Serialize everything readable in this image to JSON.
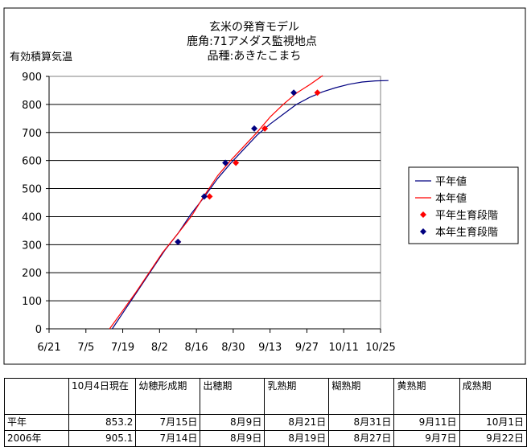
{
  "chart_data": {
    "type": "line",
    "title": [
      "玄米の発育モデル",
      "鹿角:71アメダス監視地点",
      "品種:あきたこまち"
    ],
    "ylabel": "有効積算気温",
    "xlabel": "",
    "x_ticks": [
      "6/21",
      "7/5",
      "7/19",
      "8/2",
      "8/16",
      "8/30",
      "9/13",
      "9/27",
      "10/11",
      "10/25"
    ],
    "y_ticks": [
      "0",
      "100",
      "200",
      "300",
      "400",
      "500",
      "600",
      "700",
      "800",
      "900"
    ],
    "ylim": [
      0,
      900
    ],
    "grid": true,
    "legend_position": "right",
    "series": [
      {
        "name": "平年値",
        "kind": "line",
        "color": "#000080",
        "points": [
          [
            "7/15",
            0
          ],
          [
            "7/20",
            70
          ],
          [
            "7/25",
            140
          ],
          [
            "7/30",
            210
          ],
          [
            "8/4",
            280
          ],
          [
            "8/9",
            340
          ],
          [
            "8/14",
            410
          ],
          [
            "8/19",
            470
          ],
          [
            "8/24",
            535
          ],
          [
            "8/29",
            590
          ],
          [
            "9/3",
            640
          ],
          [
            "9/8",
            690
          ],
          [
            "9/13",
            730
          ],
          [
            "9/18",
            765
          ],
          [
            "9/23",
            800
          ],
          [
            "9/28",
            825
          ],
          [
            "10/3",
            845
          ],
          [
            "10/8",
            860
          ],
          [
            "10/13",
            872
          ],
          [
            "10/18",
            880
          ],
          [
            "10/23",
            884
          ],
          [
            "10/28",
            885
          ]
        ]
      },
      {
        "name": "本年値",
        "kind": "line",
        "color": "#ff0000",
        "points": [
          [
            "7/14",
            0
          ],
          [
            "7/19",
            65
          ],
          [
            "7/24",
            130
          ],
          [
            "7/29",
            200
          ],
          [
            "8/3",
            270
          ],
          [
            "8/9",
            340
          ],
          [
            "8/14",
            400
          ],
          [
            "8/19",
            475
          ],
          [
            "8/24",
            545
          ],
          [
            "8/29",
            600
          ],
          [
            "9/3",
            650
          ],
          [
            "9/8",
            700
          ],
          [
            "9/13",
            755
          ],
          [
            "9/18",
            800
          ],
          [
            "9/23",
            840
          ],
          [
            "9/28",
            870
          ],
          [
            "10/3",
            903
          ]
        ]
      },
      {
        "name": "平年生育段階",
        "kind": "points",
        "color": "#ff0000",
        "points": [
          [
            "8/9",
            310
          ],
          [
            "8/21",
            472
          ],
          [
            "8/31",
            592
          ],
          [
            "9/11",
            714
          ],
          [
            "10/1",
            842
          ]
        ]
      },
      {
        "name": "本年生育段階",
        "kind": "points",
        "color": "#000080",
        "points": [
          [
            "8/9",
            310
          ],
          [
            "8/19",
            472
          ],
          [
            "8/27",
            592
          ],
          [
            "9/7",
            714
          ],
          [
            "9/22",
            842
          ]
        ]
      }
    ]
  },
  "table": {
    "header": [
      "",
      "10月4日現在",
      "幼穂形成期",
      "出穂期",
      "乳熟期",
      "糊熟期",
      "黄熟期",
      "成熟期"
    ],
    "rows": [
      [
        "平年",
        "853.2",
        "7月15日",
        "8月9日",
        "8月21日",
        "8月31日",
        "9月11日",
        "10月1日"
      ],
      [
        "2006年",
        "905.1",
        "7月14日",
        "8月9日",
        "8月19日",
        "8月27日",
        "9月7日",
        "9月22日"
      ]
    ]
  }
}
